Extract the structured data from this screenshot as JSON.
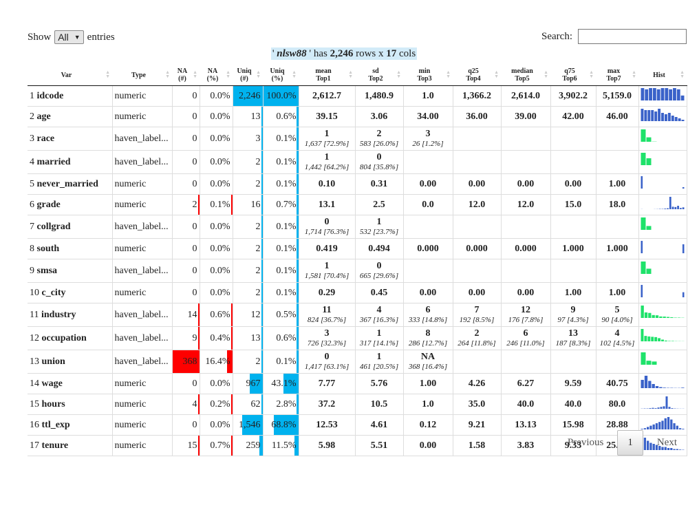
{
  "controls": {
    "show": "Show",
    "length": "All",
    "entries": "entries",
    "search": "Search:"
  },
  "caption": {
    "quote_open": "'",
    "name": "nlsw88",
    "quote_close": "' has",
    "rows": "2,246",
    "rows_text": "rows x",
    "cols": 17,
    "cols_text": "cols"
  },
  "header": [
    [
      "Var"
    ],
    [
      "Type"
    ],
    [
      "NA",
      "(#)"
    ],
    [
      "NA",
      "(%)"
    ],
    [
      "Uniq",
      "(#)"
    ],
    [
      "Uniq",
      "(%)"
    ],
    [
      "mean",
      "Top1"
    ],
    [
      "sd",
      "Top2"
    ],
    [
      "min",
      "Top3"
    ],
    [
      "q25",
      "Top4"
    ],
    [
      "median",
      "Top5"
    ],
    [
      "q75",
      "Top6"
    ],
    [
      "max",
      "Top7"
    ],
    [
      "Hist"
    ]
  ],
  "rows": [
    {
      "n": 1,
      "var": "idcode",
      "type": "numeric",
      "na_n": 0,
      "na_pct": "0.0%",
      "uniq_n": "2,246",
      "uniq_pct": "100.0%",
      "stats": [
        "2,612.7",
        "1,480.9",
        "1.0",
        "1,366.2",
        "2,614.0",
        "3,902.2",
        "5,159.0"
      ],
      "hist_color": "#3a62c9",
      "hist": [
        10,
        9,
        10,
        10,
        9,
        10,
        10,
        9,
        10,
        9,
        4
      ]
    },
    {
      "n": 2,
      "var": "age",
      "type": "numeric",
      "na_n": 0,
      "na_pct": "0.0%",
      "uniq_n": 13,
      "uniq_pct": "0.6%",
      "stats": [
        "39.15",
        "3.06",
        "34.00",
        "36.00",
        "39.00",
        "42.00",
        "46.00"
      ],
      "hist_color": "#3a62c9",
      "hist": [
        9,
        8,
        8,
        8,
        7,
        9,
        6,
        5,
        6,
        4,
        3,
        2,
        1
      ]
    },
    {
      "n": 3,
      "var": "race",
      "type": "haven_label...",
      "na_n": 0,
      "na_pct": "0.0%",
      "uniq_n": 3,
      "uniq_pct": "0.1%",
      "stats": [
        {
          "top": "1",
          "sub": "1,637 [72.9%]"
        },
        {
          "top": "2",
          "sub": "583 [26.0%]"
        },
        {
          "top": "3",
          "sub": "26 [1.2%]"
        }
      ],
      "hist_color": "#1ee26a",
      "hist": [
        72.9,
        26.0,
        1.2
      ]
    },
    {
      "n": 4,
      "var": "married",
      "type": "haven_label...",
      "na_n": 0,
      "na_pct": "0.0%",
      "uniq_n": 2,
      "uniq_pct": "0.1%",
      "stats": [
        {
          "top": "1",
          "sub": "1,442 [64.2%]"
        },
        {
          "top": "0",
          "sub": "804 [35.8%]"
        }
      ],
      "hist_color": "#1ee26a",
      "hist": [
        64.2,
        35.8
      ]
    },
    {
      "n": 5,
      "var": "never_married",
      "type": "numeric",
      "na_n": 0,
      "na_pct": "0.0%",
      "uniq_n": 2,
      "uniq_pct": "0.1%",
      "stats": [
        "0.10",
        "0.31",
        "0.00",
        "0.00",
        "0.00",
        "0.00",
        "1.00"
      ],
      "hist_color": "#3a62c9",
      "hist": [
        90,
        0,
        0,
        0,
        0,
        0,
        0,
        0,
        0,
        0,
        0,
        0,
        0,
        0,
        0,
        0,
        0,
        10
      ]
    },
    {
      "n": 6,
      "var": "grade",
      "type": "numeric",
      "na_n": 2,
      "na_pct": "0.1%",
      "uniq_n": 16,
      "uniq_pct": "0.7%",
      "stats": [
        "13.1",
        "2.5",
        "0.0",
        "12.0",
        "12.0",
        "15.0",
        "18.0"
      ],
      "hist_color": "#3a62c9",
      "hist": [
        0.3,
        0,
        0,
        0,
        0,
        0.3,
        0.5,
        1,
        1,
        2,
        3,
        40,
        8,
        7,
        11,
        4,
        6
      ]
    },
    {
      "n": 7,
      "var": "collgrad",
      "type": "haven_label...",
      "na_n": 0,
      "na_pct": "0.0%",
      "uniq_n": 2,
      "uniq_pct": "0.1%",
      "stats": [
        {
          "top": "0",
          "sub": "1,714 [76.3%]"
        },
        {
          "top": "1",
          "sub": "532 [23.7%]"
        }
      ],
      "hist_color": "#1ee26a",
      "hist": [
        76.3,
        23.7
      ]
    },
    {
      "n": 8,
      "var": "south",
      "type": "numeric",
      "na_n": 0,
      "na_pct": "0.0%",
      "uniq_n": 2,
      "uniq_pct": "0.1%",
      "stats": [
        "0.419",
        "0.494",
        "0.000",
        "0.000",
        "0.000",
        "1.000",
        "1.000"
      ],
      "hist_color": "#3a62c9",
      "hist": [
        58,
        0,
        0,
        0,
        0,
        0,
        0,
        0,
        0,
        0,
        0,
        0,
        0,
        0,
        0,
        0,
        0,
        42
      ]
    },
    {
      "n": 9,
      "var": "smsa",
      "type": "haven_label...",
      "na_n": 0,
      "na_pct": "0.0%",
      "uniq_n": 2,
      "uniq_pct": "0.1%",
      "stats": [
        {
          "top": "1",
          "sub": "1,581 [70.4%]"
        },
        {
          "top": "0",
          "sub": "665 [29.6%]"
        }
      ],
      "hist_color": "#1ee26a",
      "hist": [
        70.4,
        29.6
      ]
    },
    {
      "n": 10,
      "var": "c_city",
      "type": "numeric",
      "na_n": 0,
      "na_pct": "0.0%",
      "uniq_n": 2,
      "uniq_pct": "0.1%",
      "stats": [
        "0.29",
        "0.45",
        "0.00",
        "0.00",
        "0.00",
        "1.00",
        "1.00"
      ],
      "hist_color": "#3a62c9",
      "hist": [
        71,
        0,
        0,
        0,
        0,
        0,
        0,
        0,
        0,
        0,
        0,
        0,
        0,
        0,
        0,
        0,
        0,
        29
      ]
    },
    {
      "n": 11,
      "var": "industry",
      "type": "haven_label...",
      "na_n": 14,
      "na_pct": "0.6%",
      "uniq_n": 12,
      "uniq_pct": "0.5%",
      "stats": [
        {
          "top": "11",
          "sub": "824 [36.7%]"
        },
        {
          "top": "4",
          "sub": "367 [16.3%]"
        },
        {
          "top": "6",
          "sub": "333 [14.8%]"
        },
        {
          "top": "7",
          "sub": "192 [8.5%]"
        },
        {
          "top": "12",
          "sub": "176 [7.8%]"
        },
        {
          "top": "9",
          "sub": "97 [4.3%]"
        },
        {
          "top": "5",
          "sub": "90 [4.0%]"
        }
      ],
      "hist_color": "#1ee26a",
      "hist": [
        36.7,
        16.3,
        14.8,
        8.5,
        7.8,
        4.3,
        4.0,
        3,
        2,
        1,
        1,
        0.6
      ]
    },
    {
      "n": 12,
      "var": "occupation",
      "type": "haven_label...",
      "na_n": 9,
      "na_pct": "0.4%",
      "uniq_n": 13,
      "uniq_pct": "0.6%",
      "stats": [
        {
          "top": "3",
          "sub": "726 [32.3%]"
        },
        {
          "top": "1",
          "sub": "317 [14.1%]"
        },
        {
          "top": "8",
          "sub": "286 [12.7%]"
        },
        {
          "top": "2",
          "sub": "264 [11.8%]"
        },
        {
          "top": "6",
          "sub": "246 [11.0%]"
        },
        {
          "top": "13",
          "sub": "187 [8.3%]"
        },
        {
          "top": "4",
          "sub": "102 [4.5%]"
        }
      ],
      "hist_color": "#1ee26a",
      "hist": [
        32.3,
        14.1,
        12.7,
        11.8,
        11.0,
        8.3,
        4.5,
        2,
        1,
        1,
        0.5,
        0.4,
        0.3
      ]
    },
    {
      "n": 13,
      "var": "union",
      "type": "haven_label...",
      "na_n": 368,
      "na_pct": "16.4%",
      "uniq_n": 2,
      "uniq_pct": "0.1%",
      "stats": [
        {
          "top": "0",
          "sub": "1,417 [63.1%]"
        },
        {
          "top": "1",
          "sub": "461 [20.5%]"
        },
        {
          "top": "NA",
          "sub": "368 [16.4%]"
        }
      ],
      "hist_color": "#1ee26a",
      "hist": [
        63.1,
        20.5,
        16.4
      ]
    },
    {
      "n": 14,
      "var": "wage",
      "type": "numeric",
      "na_n": 0,
      "na_pct": "0.0%",
      "uniq_n": 967,
      "uniq_pct": "43.1%",
      "stats": [
        "7.77",
        "5.76",
        "1.00",
        "4.26",
        "6.27",
        "9.59",
        "40.75"
      ],
      "hist_color": "#3a62c9",
      "hist": [
        8,
        12,
        7,
        4,
        2,
        1,
        0.5,
        0.3,
        0.3,
        0.2,
        0.2,
        0.5
      ]
    },
    {
      "n": 15,
      "var": "hours",
      "type": "numeric",
      "na_n": 4,
      "na_pct": "0.2%",
      "uniq_n": 62,
      "uniq_pct": "2.8%",
      "stats": [
        "37.2",
        "10.5",
        "1.0",
        "35.0",
        "40.0",
        "40.0",
        "80.0"
      ],
      "hist_color": "#3a62c9",
      "hist": [
        0.3,
        0.5,
        0.5,
        1,
        1.5,
        1,
        2,
        3,
        4,
        20,
        3,
        1,
        0.5,
        0.3,
        0.2,
        0.2
      ]
    },
    {
      "n": 16,
      "var": "ttl_exp",
      "type": "numeric",
      "na_n": 0,
      "na_pct": "0.0%",
      "uniq_n": "1,546",
      "uniq_pct": "68.8%",
      "stats": [
        "12.53",
        "4.61",
        "0.12",
        "9.21",
        "13.13",
        "15.98",
        "28.88"
      ],
      "hist_color": "#3a62c9",
      "hist": [
        0.5,
        1,
        2,
        3,
        4,
        5,
        6,
        7,
        9,
        10,
        8,
        5,
        3,
        1,
        0.5
      ]
    },
    {
      "n": 17,
      "var": "tenure",
      "type": "numeric",
      "na_n": 15,
      "na_pct": "0.7%",
      "uniq_n": 259,
      "uniq_pct": "11.5%",
      "stats": [
        "5.98",
        "5.51",
        "0.00",
        "1.58",
        "3.83",
        "9.33",
        "25.92"
      ],
      "hist_color": "#3a62c9",
      "hist": [
        10,
        12,
        9,
        7,
        6,
        5,
        4,
        3,
        3,
        2,
        2,
        1,
        1,
        0.5,
        0.3
      ]
    }
  ],
  "pagination": {
    "prev": "Previous",
    "page": 1,
    "next": "Next"
  }
}
